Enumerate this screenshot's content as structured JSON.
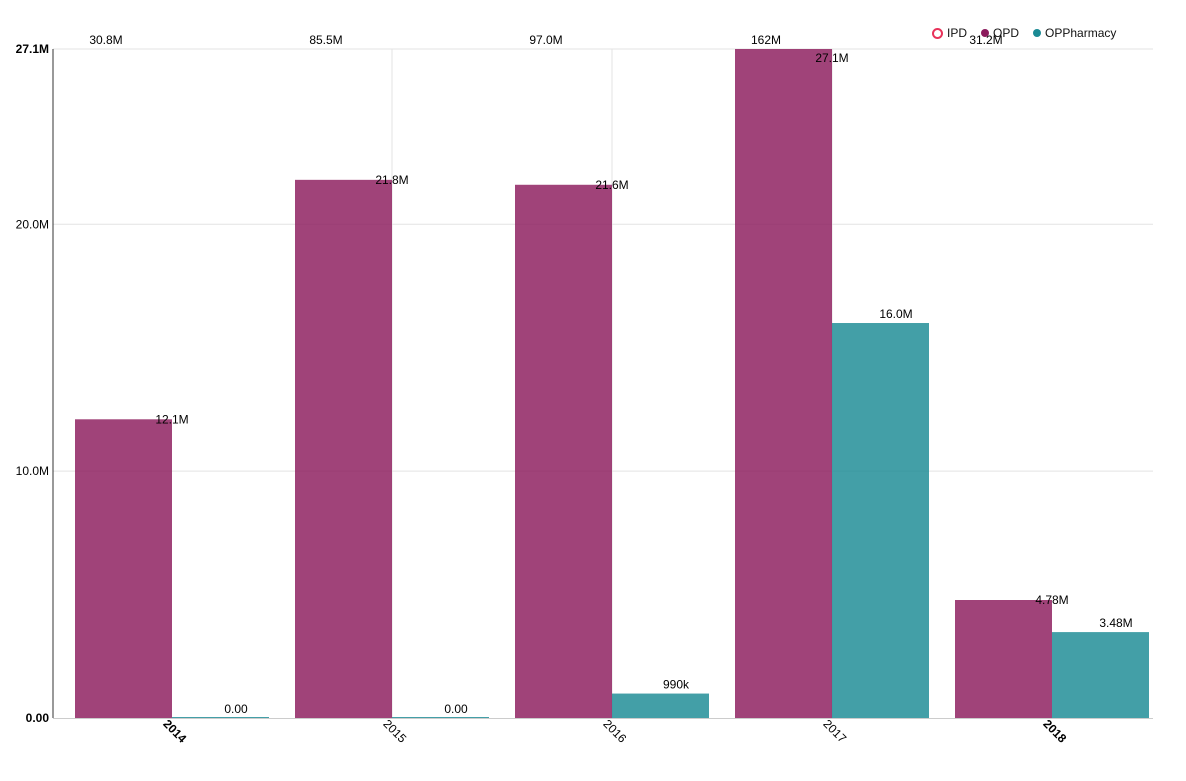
{
  "chart_data": {
    "type": "bar",
    "categories": [
      "2014",
      "2015",
      "2016",
      "2017",
      "2018"
    ],
    "bold_categories": [
      "2014",
      "2018"
    ],
    "series": [
      {
        "name": "IPD",
        "color": "#e8325a",
        "hollow": true,
        "values": [
          30.8,
          85.5,
          97.0,
          162,
          31.2
        ],
        "labels": [
          "30.8M",
          "85.5M",
          "97.0M",
          "162M",
          "31.2M"
        ]
      },
      {
        "name": "OPD",
        "color": "#8b1a5c",
        "values": [
          12.1,
          21.8,
          21.6,
          27.1,
          4.78
        ],
        "labels": [
          "12.1M",
          "21.8M",
          "21.6M",
          "27.1M",
          "4.78M"
        ]
      },
      {
        "name": "OPPharmacy",
        "color": "#1a8a94",
        "values": [
          0,
          0,
          0.99,
          16.0,
          3.48
        ],
        "labels": [
          "0.00",
          "0.00",
          "990k",
          "16.0M",
          "3.48M"
        ]
      }
    ],
    "y_ticks": [
      {
        "value": 0,
        "label": "0.00",
        "bold": true
      },
      {
        "value": 10,
        "label": "10.0M",
        "bold": false
      },
      {
        "value": 20,
        "label": "20.0M",
        "bold": false
      },
      {
        "value": 27.1,
        "label": "27.1M",
        "bold": true
      }
    ],
    "ylim": [
      0,
      27.1
    ],
    "title": "",
    "xlabel": "",
    "ylabel": "",
    "legend_position": "top-right"
  }
}
